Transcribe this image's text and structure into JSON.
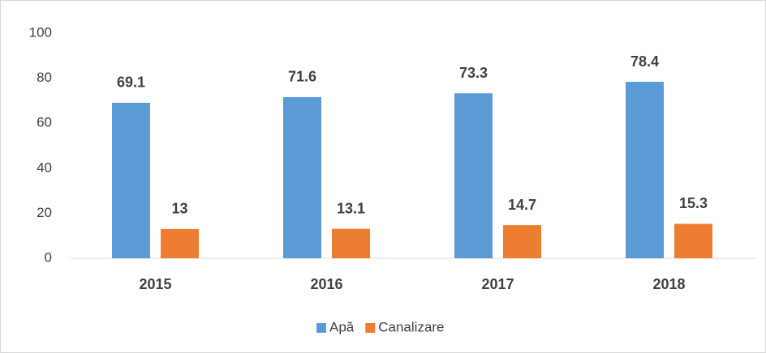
{
  "chart_data": {
    "type": "bar",
    "categories": [
      "2015",
      "2016",
      "2017",
      "2018"
    ],
    "series": [
      {
        "name": "Apă",
        "color": "#5b9bd5",
        "values": [
          69.1,
          71.6,
          73.3,
          78.4
        ]
      },
      {
        "name": "Canalizare",
        "color": "#ed7d31",
        "values": [
          13,
          13.1,
          14.7,
          15.3
        ]
      }
    ],
    "ylim": [
      0,
      100
    ],
    "yticks": [
      0,
      20,
      40,
      60,
      80,
      100
    ],
    "grid": false,
    "legend": "bottom"
  }
}
